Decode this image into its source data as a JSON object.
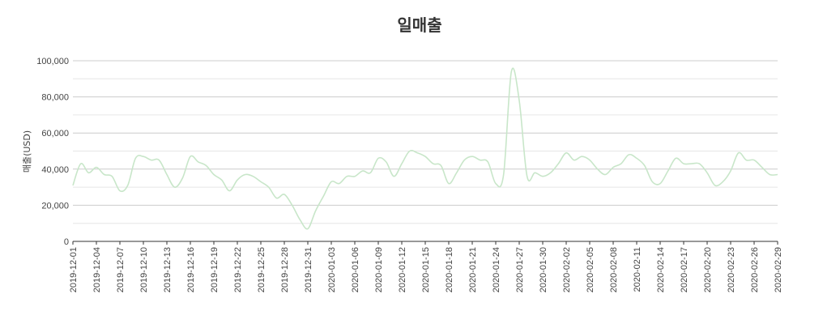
{
  "chart_data": {
    "type": "line",
    "title": "일매출",
    "xlabel": "",
    "ylabel": "매출(USD)",
    "ylim": [
      0,
      100000
    ],
    "yticks": [
      0,
      20000,
      40000,
      60000,
      80000,
      100000
    ],
    "ytick_labels": [
      "0",
      "20,000",
      "40,000",
      "60,000",
      "80,000",
      "100,000"
    ],
    "grid": true,
    "line_color": "#c8e6c9",
    "xtick_labels": [
      "2019-12-01",
      "2019-12-04",
      "2019-12-07",
      "2019-12-10",
      "2019-12-13",
      "2019-12-16",
      "2019-12-19",
      "2019-12-22",
      "2019-12-25",
      "2019-12-28",
      "2019-12-31",
      "2020-01-03",
      "2020-01-06",
      "2020-01-09",
      "2020-01-12",
      "2020-01-15",
      "2020-01-18",
      "2020-01-21",
      "2020-01-24",
      "2020-01-27",
      "2020-01-30",
      "2020-02-02",
      "2020-02-05",
      "2020-02-08",
      "2020-02-11",
      "2020-02-14",
      "2020-02-17",
      "2020-02-20",
      "2020-02-23",
      "2020-02-26",
      "2020-02-29"
    ],
    "series": [
      {
        "x": [
          "2019-12-01",
          "2019-12-02",
          "2019-12-03",
          "2019-12-04",
          "2019-12-05",
          "2019-12-06",
          "2019-12-07",
          "2019-12-08",
          "2019-12-09",
          "2019-12-10",
          "2019-12-11",
          "2019-12-12",
          "2019-12-13",
          "2019-12-14",
          "2019-12-15",
          "2019-12-16",
          "2019-12-17",
          "2019-12-18",
          "2019-12-19",
          "2019-12-20",
          "2019-12-21",
          "2019-12-22",
          "2019-12-23",
          "2019-12-24",
          "2019-12-25",
          "2019-12-26",
          "2019-12-27",
          "2019-12-28",
          "2019-12-29",
          "2019-12-30",
          "2019-12-31",
          "2020-01-01",
          "2020-01-02",
          "2020-01-03",
          "2020-01-04",
          "2020-01-05",
          "2020-01-06",
          "2020-01-07",
          "2020-01-08",
          "2020-01-09",
          "2020-01-10",
          "2020-01-11",
          "2020-01-12",
          "2020-01-13",
          "2020-01-14",
          "2020-01-15",
          "2020-01-16",
          "2020-01-17",
          "2020-01-18",
          "2020-01-19",
          "2020-01-20",
          "2020-01-21",
          "2020-01-22",
          "2020-01-23",
          "2020-01-24",
          "2020-01-25",
          "2020-01-26",
          "2020-01-27",
          "2020-01-28",
          "2020-01-29",
          "2020-01-30",
          "2020-01-31",
          "2020-02-01",
          "2020-02-02",
          "2020-02-03",
          "2020-02-04",
          "2020-02-05",
          "2020-02-06",
          "2020-02-07",
          "2020-02-08",
          "2020-02-09",
          "2020-02-10",
          "2020-02-11",
          "2020-02-12",
          "2020-02-13",
          "2020-02-14",
          "2020-02-15",
          "2020-02-16",
          "2020-02-17",
          "2020-02-18",
          "2020-02-19",
          "2020-02-20",
          "2020-02-21",
          "2020-02-22",
          "2020-02-23",
          "2020-02-24",
          "2020-02-25",
          "2020-02-26",
          "2020-02-27",
          "2020-02-28",
          "2020-02-29"
        ],
        "values": [
          31000,
          43000,
          38000,
          41000,
          37000,
          36000,
          28000,
          31000,
          46000,
          47000,
          45000,
          45000,
          37000,
          30000,
          35000,
          47000,
          44000,
          42000,
          37000,
          34000,
          28000,
          34000,
          37000,
          36000,
          33000,
          30000,
          24000,
          26000,
          20000,
          12000,
          7000,
          17000,
          25000,
          33000,
          32000,
          36000,
          36000,
          39000,
          38000,
          46000,
          44000,
          36000,
          43000,
          50000,
          49000,
          47000,
          43000,
          42000,
          32000,
          38000,
          45000,
          47000,
          45000,
          44000,
          32000,
          37000,
          94000,
          78000,
          36000,
          38000,
          36000,
          38000,
          43000,
          49000,
          45000,
          47000,
          45000,
          40000,
          37000,
          41000,
          43000,
          48000,
          46000,
          42000,
          33000,
          32000,
          39000,
          46000,
          43000,
          43000,
          43000,
          38000,
          31000,
          33000,
          39000,
          49000,
          45000,
          45000,
          41000,
          37000,
          37000
        ]
      }
    ]
  }
}
